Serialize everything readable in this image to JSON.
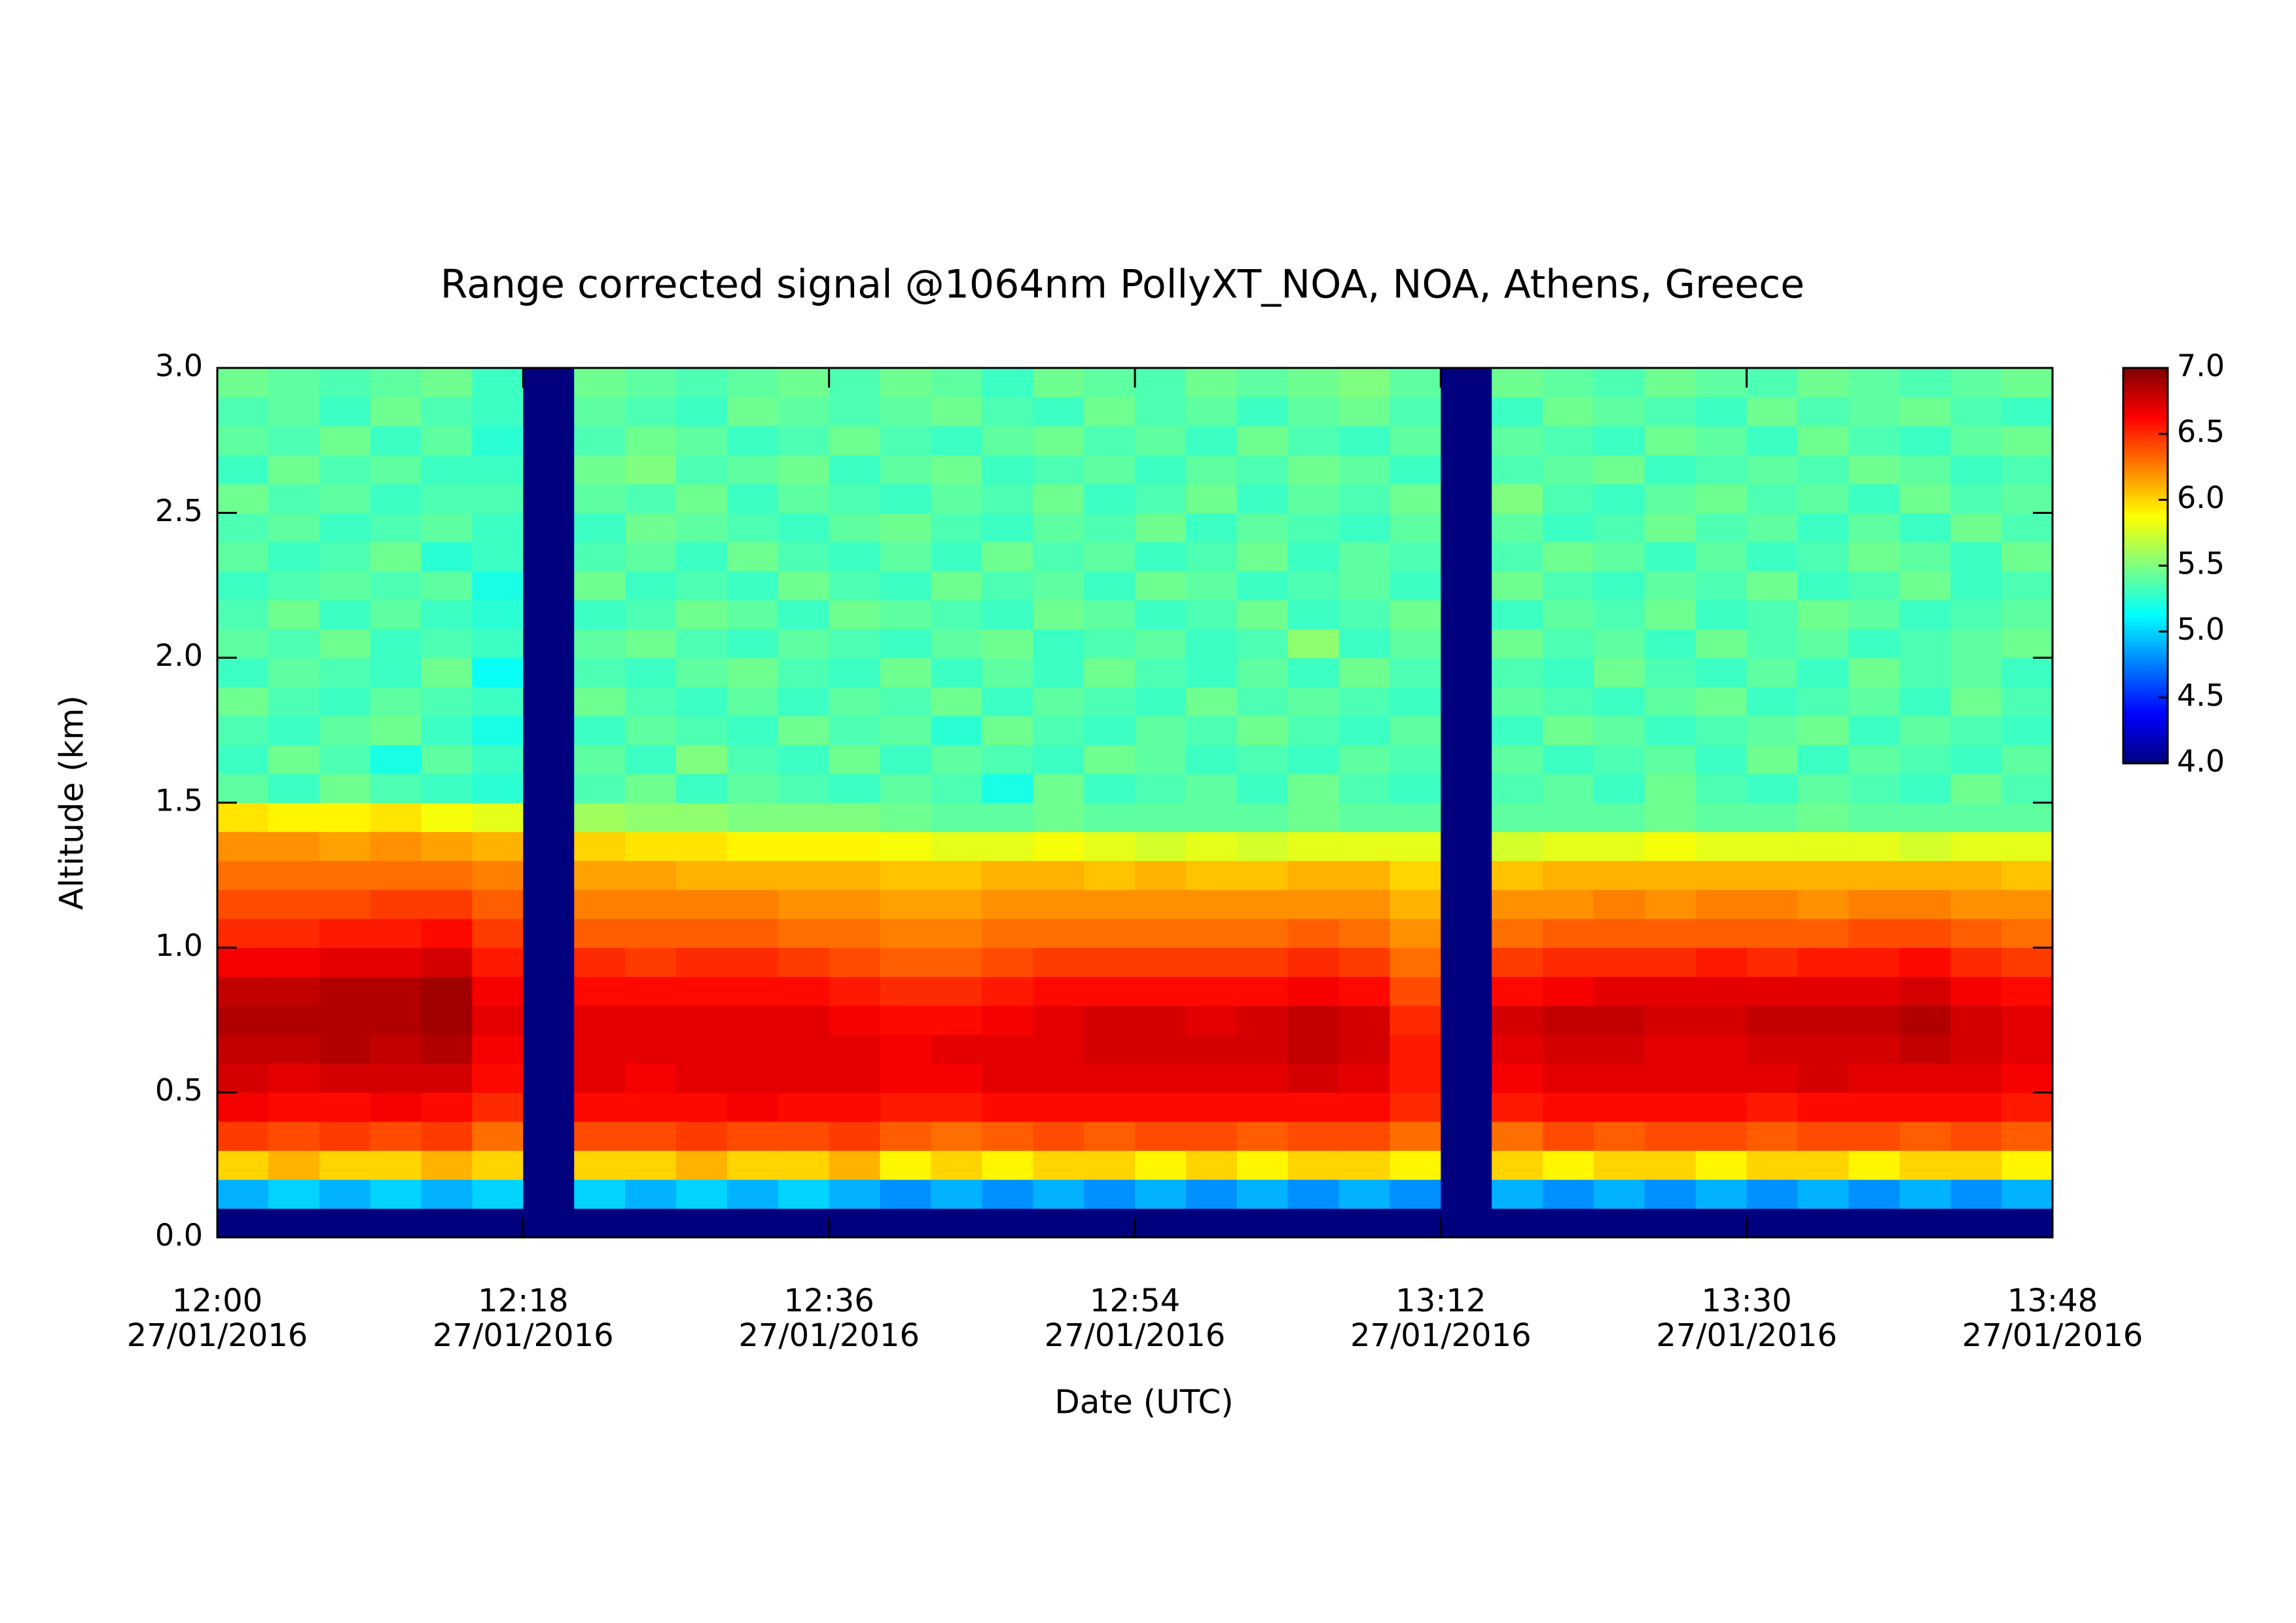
{
  "chart_data": {
    "type": "heatmap",
    "title": "Range corrected signal @1064nm  PollyXT_NOA, NOA, Athens, Greece",
    "xlabel": "Date (UTC)",
    "ylabel": "Altitude (km)",
    "x": [
      "12:00",
      "12:03",
      "12:06",
      "12:09",
      "12:12",
      "12:15",
      "12:18",
      "12:21",
      "12:24",
      "12:27",
      "12:30",
      "12:33",
      "12:36",
      "12:39",
      "12:42",
      "12:45",
      "12:48",
      "12:51",
      "12:54",
      "12:57",
      "13:00",
      "13:03",
      "13:06",
      "13:09",
      "13:12",
      "13:15",
      "13:18",
      "13:21",
      "13:24",
      "13:27",
      "13:30",
      "13:33",
      "13:36",
      "13:39",
      "13:42",
      "13:45"
    ],
    "xlim": [
      "12:00",
      "13:48"
    ],
    "xticks": [
      {
        "value": "12:00",
        "label": "12:00\n27/01/2016"
      },
      {
        "value": "12:18",
        "label": "12:18\n27/01/2016"
      },
      {
        "value": "12:36",
        "label": "12:36\n27/01/2016"
      },
      {
        "value": "12:54",
        "label": "12:54\n27/01/2016"
      },
      {
        "value": "13:12",
        "label": "13:12\n27/01/2016"
      },
      {
        "value": "13:30",
        "label": "13:30\n27/01/2016"
      },
      {
        "value": "13:48",
        "label": "13:48\n27/01/2016"
      }
    ],
    "y": [
      0,
      0.1,
      0.2,
      0.3,
      0.4,
      0.5,
      0.6,
      0.7,
      0.8,
      0.9,
      1,
      1.1,
      1.2,
      1.3,
      1.4,
      1.5,
      1.6,
      1.7,
      1.8,
      1.9,
      2,
      2.1,
      2.2,
      2.3,
      2.4,
      2.5,
      2.6,
      2.7,
      2.8,
      2.9
    ],
    "ylim": [
      0,
      3
    ],
    "yticks": [
      {
        "value": 0,
        "label": "0.0"
      },
      0.5,
      {
        "value": 1,
        "label": "1.0"
      },
      1.5,
      {
        "value": 2,
        "label": "2.0"
      },
      2.5,
      {
        "value": 3,
        "label": "3.0"
      }
    ],
    "zlim": [
      4,
      7
    ],
    "zticks": [
      {
        "value": 4,
        "label": "4.0"
      },
      4.5,
      {
        "value": 5,
        "label": "5.0"
      },
      5.5,
      {
        "value": 6,
        "label": "6.0"
      },
      6.5,
      {
        "value": 7,
        "label": "7.0"
      }
    ],
    "colormap": [
      "#00007f",
      "#0000ff",
      "#007fff",
      "#00ffff",
      "#7fff7f",
      "#ffff00",
      "#ff7f00",
      "#ff0000",
      "#7f0000"
    ],
    "z": [
      [
        4,
        4,
        4,
        4,
        4,
        4,
        4,
        4,
        4,
        4,
        4,
        4,
        4,
        4,
        4,
        4,
        4,
        4,
        4,
        4,
        4,
        4,
        4,
        4,
        4,
        4,
        4,
        4,
        4,
        4,
        4,
        4,
        4,
        4,
        4,
        4
      ],
      [
        4.9,
        5.0,
        4.9,
        5.0,
        4.9,
        5.0,
        4,
        5.0,
        4.9,
        5.0,
        4.9,
        5.0,
        4.9,
        4.8,
        4.9,
        4.8,
        4.9,
        4.8,
        4.9,
        4.8,
        4.9,
        4.8,
        4.9,
        4.8,
        4,
        4.9,
        4.8,
        4.9,
        4.8,
        4.9,
        4.8,
        4.9,
        4.8,
        4.9,
        4.8,
        4.9
      ],
      [
        6.0,
        6.1,
        6.0,
        6.0,
        6.1,
        6.0,
        4,
        6.0,
        6.0,
        6.1,
        6.0,
        6.0,
        6.1,
        5.9,
        6.0,
        5.9,
        6.0,
        6.0,
        5.9,
        6.0,
        5.9,
        6.0,
        6.0,
        5.9,
        4,
        6.0,
        5.9,
        6.0,
        6.0,
        5.9,
        6.0,
        6.0,
        5.9,
        6.0,
        6.0,
        5.9
      ],
      [
        6.45,
        6.4,
        6.45,
        6.4,
        6.45,
        6.3,
        4,
        6.4,
        6.4,
        6.45,
        6.4,
        6.4,
        6.45,
        6.35,
        6.3,
        6.35,
        6.4,
        6.35,
        6.4,
        6.4,
        6.35,
        6.4,
        6.4,
        6.3,
        4,
        6.3,
        6.4,
        6.35,
        6.4,
        6.4,
        6.35,
        6.4,
        6.4,
        6.35,
        6.4,
        6.35
      ],
      [
        6.65,
        6.6,
        6.6,
        6.65,
        6.6,
        6.5,
        4,
        6.6,
        6.6,
        6.6,
        6.65,
        6.6,
        6.6,
        6.55,
        6.55,
        6.6,
        6.6,
        6.6,
        6.6,
        6.6,
        6.6,
        6.6,
        6.6,
        6.5,
        4,
        6.55,
        6.6,
        6.6,
        6.6,
        6.6,
        6.55,
        6.6,
        6.6,
        6.6,
        6.6,
        6.55
      ],
      [
        6.75,
        6.7,
        6.75,
        6.75,
        6.75,
        6.6,
        4,
        6.7,
        6.65,
        6.7,
        6.7,
        6.7,
        6.7,
        6.65,
        6.65,
        6.7,
        6.7,
        6.7,
        6.7,
        6.7,
        6.7,
        6.75,
        6.7,
        6.55,
        4,
        6.65,
        6.7,
        6.7,
        6.7,
        6.7,
        6.7,
        6.75,
        6.7,
        6.7,
        6.7,
        6.65
      ],
      [
        6.8,
        6.8,
        6.85,
        6.8,
        6.85,
        6.65,
        4,
        6.7,
        6.7,
        6.7,
        6.7,
        6.7,
        6.7,
        6.65,
        6.7,
        6.7,
        6.7,
        6.75,
        6.75,
        6.75,
        6.75,
        6.8,
        6.75,
        6.55,
        4,
        6.7,
        6.75,
        6.75,
        6.7,
        6.7,
        6.75,
        6.75,
        6.75,
        6.8,
        6.75,
        6.7
      ],
      [
        6.85,
        6.85,
        6.85,
        6.85,
        6.9,
        6.7,
        4,
        6.7,
        6.7,
        6.7,
        6.7,
        6.7,
        6.65,
        6.6,
        6.6,
        6.65,
        6.7,
        6.75,
        6.75,
        6.7,
        6.75,
        6.8,
        6.75,
        6.5,
        4,
        6.75,
        6.8,
        6.8,
        6.75,
        6.75,
        6.8,
        6.8,
        6.8,
        6.85,
        6.75,
        6.7
      ],
      [
        6.8,
        6.8,
        6.85,
        6.85,
        6.9,
        6.65,
        4,
        6.6,
        6.6,
        6.6,
        6.6,
        6.6,
        6.55,
        6.5,
        6.5,
        6.55,
        6.6,
        6.6,
        6.6,
        6.6,
        6.6,
        6.65,
        6.6,
        6.4,
        4,
        6.6,
        6.65,
        6.7,
        6.7,
        6.7,
        6.7,
        6.7,
        6.7,
        6.75,
        6.65,
        6.6
      ],
      [
        6.65,
        6.65,
        6.7,
        6.7,
        6.75,
        6.55,
        4,
        6.5,
        6.45,
        6.5,
        6.5,
        6.45,
        6.4,
        6.35,
        6.35,
        6.4,
        6.45,
        6.45,
        6.45,
        6.45,
        6.45,
        6.5,
        6.45,
        6.3,
        4,
        6.45,
        6.5,
        6.5,
        6.5,
        6.55,
        6.5,
        6.55,
        6.55,
        6.6,
        6.5,
        6.45
      ],
      [
        6.5,
        6.5,
        6.55,
        6.55,
        6.6,
        6.45,
        4,
        6.35,
        6.35,
        6.35,
        6.35,
        6.3,
        6.3,
        6.25,
        6.25,
        6.3,
        6.3,
        6.3,
        6.3,
        6.3,
        6.3,
        6.35,
        6.3,
        6.2,
        4,
        6.3,
        6.35,
        6.35,
        6.35,
        6.35,
        6.35,
        6.35,
        6.4,
        6.4,
        6.35,
        6.3
      ],
      [
        6.4,
        6.4,
        6.4,
        6.45,
        6.45,
        6.35,
        4,
        6.25,
        6.25,
        6.25,
        6.25,
        6.2,
        6.2,
        6.15,
        6.15,
        6.2,
        6.2,
        6.2,
        6.2,
        6.2,
        6.2,
        6.2,
        6.2,
        6.1,
        4,
        6.2,
        6.2,
        6.25,
        6.2,
        6.25,
        6.25,
        6.2,
        6.25,
        6.25,
        6.2,
        6.2
      ],
      [
        6.3,
        6.3,
        6.3,
        6.3,
        6.3,
        6.25,
        4,
        6.15,
        6.15,
        6.1,
        6.1,
        6.1,
        6.1,
        6.05,
        6.05,
        6.1,
        6.1,
        6.05,
        6.1,
        6.05,
        6.05,
        6.1,
        6.1,
        6.0,
        4,
        6.05,
        6.1,
        6.1,
        6.1,
        6.1,
        6.1,
        6.1,
        6.1,
        6.1,
        6.1,
        6.05
      ],
      [
        6.2,
        6.2,
        6.15,
        6.2,
        6.15,
        6.1,
        4,
        6.0,
        5.95,
        5.95,
        5.9,
        5.9,
        5.9,
        5.85,
        5.8,
        5.8,
        5.85,
        5.8,
        5.75,
        5.8,
        5.75,
        5.8,
        5.8,
        5.8,
        4,
        5.75,
        5.8,
        5.8,
        5.85,
        5.8,
        5.8,
        5.8,
        5.8,
        5.75,
        5.8,
        5.8
      ],
      [
        5.95,
        5.9,
        5.9,
        5.95,
        5.85,
        5.8,
        4,
        5.6,
        5.55,
        5.55,
        5.5,
        5.5,
        5.5,
        5.45,
        5.4,
        5.4,
        5.45,
        5.4,
        5.4,
        5.4,
        5.4,
        5.45,
        5.4,
        5.4,
        4,
        5.4,
        5.4,
        5.4,
        5.45,
        5.4,
        5.4,
        5.45,
        5.4,
        5.4,
        5.4,
        5.4
      ],
      [
        5.4,
        5.3,
        5.45,
        5.35,
        5.3,
        5.25,
        4,
        5.35,
        5.45,
        5.3,
        5.4,
        5.35,
        5.3,
        5.4,
        5.35,
        5.2,
        5.45,
        5.3,
        5.35,
        5.4,
        5.3,
        5.45,
        5.35,
        5.3,
        4,
        5.35,
        5.4,
        5.3,
        5.45,
        5.35,
        5.3,
        5.4,
        5.35,
        5.3,
        5.45,
        5.35
      ],
      [
        5.3,
        5.45,
        5.35,
        5.2,
        5.4,
        5.3,
        4,
        5.4,
        5.3,
        5.5,
        5.35,
        5.3,
        5.45,
        5.3,
        5.4,
        5.35,
        5.3,
        5.45,
        5.4,
        5.3,
        5.35,
        5.3,
        5.4,
        5.35,
        4,
        5.4,
        5.3,
        5.35,
        5.4,
        5.3,
        5.45,
        5.3,
        5.4,
        5.35,
        5.3,
        5.4
      ],
      [
        5.35,
        5.3,
        5.4,
        5.45,
        5.3,
        5.2,
        4,
        5.3,
        5.4,
        5.35,
        5.3,
        5.45,
        5.35,
        5.4,
        5.25,
        5.45,
        5.35,
        5.3,
        5.4,
        5.35,
        5.45,
        5.35,
        5.3,
        5.4,
        4,
        5.3,
        5.45,
        5.4,
        5.3,
        5.35,
        5.4,
        5.45,
        5.3,
        5.4,
        5.35,
        5.3
      ],
      [
        5.45,
        5.35,
        5.3,
        5.4,
        5.35,
        5.3,
        4,
        5.45,
        5.35,
        5.3,
        5.4,
        5.3,
        5.4,
        5.35,
        5.45,
        5.3,
        5.4,
        5.35,
        5.3,
        5.45,
        5.35,
        5.4,
        5.35,
        5.3,
        4,
        5.4,
        5.35,
        5.3,
        5.4,
        5.45,
        5.3,
        5.35,
        5.4,
        5.3,
        5.45,
        5.35
      ],
      [
        5.3,
        5.4,
        5.35,
        5.3,
        5.45,
        5.15,
        4,
        5.35,
        5.3,
        5.4,
        5.45,
        5.35,
        5.3,
        5.45,
        5.3,
        5.4,
        5.3,
        5.45,
        5.35,
        5.3,
        5.4,
        5.3,
        5.45,
        5.35,
        4,
        5.35,
        5.3,
        5.45,
        5.35,
        5.3,
        5.4,
        5.3,
        5.45,
        5.35,
        5.4,
        5.3
      ],
      [
        5.4,
        5.35,
        5.45,
        5.3,
        5.35,
        5.3,
        4,
        5.4,
        5.45,
        5.35,
        5.3,
        5.4,
        5.35,
        5.3,
        5.4,
        5.45,
        5.3,
        5.35,
        5.4,
        5.3,
        5.35,
        5.55,
        5.3,
        5.4,
        4,
        5.45,
        5.35,
        5.4,
        5.3,
        5.45,
        5.35,
        5.4,
        5.3,
        5.35,
        5.4,
        5.45
      ],
      [
        5.35,
        5.45,
        5.3,
        5.4,
        5.3,
        5.25,
        4,
        5.3,
        5.35,
        5.45,
        5.4,
        5.3,
        5.45,
        5.4,
        5.35,
        5.3,
        5.45,
        5.4,
        5.3,
        5.35,
        5.45,
        5.3,
        5.35,
        5.45,
        4,
        5.3,
        5.4,
        5.35,
        5.45,
        5.3,
        5.35,
        5.45,
        5.4,
        5.3,
        5.35,
        5.4
      ],
      [
        5.3,
        5.35,
        5.4,
        5.35,
        5.4,
        5.2,
        4,
        5.45,
        5.3,
        5.35,
        5.3,
        5.45,
        5.35,
        5.3,
        5.45,
        5.35,
        5.4,
        5.3,
        5.45,
        5.4,
        5.3,
        5.35,
        5.4,
        5.3,
        4,
        5.45,
        5.35,
        5.3,
        5.4,
        5.35,
        5.45,
        5.3,
        5.35,
        5.45,
        5.3,
        5.35
      ],
      [
        5.4,
        5.3,
        5.35,
        5.45,
        5.25,
        5.3,
        4,
        5.35,
        5.4,
        5.3,
        5.45,
        5.35,
        5.3,
        5.4,
        5.3,
        5.45,
        5.35,
        5.4,
        5.3,
        5.35,
        5.45,
        5.3,
        5.4,
        5.35,
        4,
        5.35,
        5.45,
        5.4,
        5.3,
        5.4,
        5.3,
        5.35,
        5.45,
        5.4,
        5.3,
        5.45
      ],
      [
        5.35,
        5.4,
        5.3,
        5.35,
        5.4,
        5.3,
        4,
        5.3,
        5.45,
        5.4,
        5.35,
        5.3,
        5.4,
        5.45,
        5.35,
        5.3,
        5.4,
        5.35,
        5.45,
        5.3,
        5.4,
        5.35,
        5.3,
        5.4,
        4,
        5.4,
        5.3,
        5.35,
        5.45,
        5.35,
        5.4,
        5.3,
        5.4,
        5.3,
        5.45,
        5.35
      ],
      [
        5.45,
        5.35,
        5.4,
        5.3,
        5.35,
        5.35,
        4,
        5.4,
        5.35,
        5.45,
        5.3,
        5.4,
        5.35,
        5.3,
        5.4,
        5.35,
        5.45,
        5.3,
        5.35,
        5.45,
        5.3,
        5.4,
        5.35,
        5.45,
        4,
        5.5,
        5.35,
        5.3,
        5.4,
        5.45,
        5.35,
        5.4,
        5.3,
        5.45,
        5.35,
        5.4
      ],
      [
        5.3,
        5.45,
        5.35,
        5.4,
        5.3,
        5.3,
        4,
        5.45,
        5.5,
        5.35,
        5.4,
        5.45,
        5.3,
        5.4,
        5.45,
        5.3,
        5.35,
        5.4,
        5.3,
        5.4,
        5.35,
        5.45,
        5.4,
        5.3,
        4,
        5.35,
        5.4,
        5.45,
        5.3,
        5.35,
        5.4,
        5.35,
        5.45,
        5.4,
        5.3,
        5.35
      ],
      [
        5.4,
        5.35,
        5.45,
        5.3,
        5.4,
        5.25,
        4,
        5.35,
        5.45,
        5.4,
        5.3,
        5.35,
        5.45,
        5.35,
        5.3,
        5.4,
        5.45,
        5.35,
        5.4,
        5.3,
        5.45,
        5.35,
        5.3,
        5.4,
        4,
        5.4,
        5.35,
        5.3,
        5.45,
        5.4,
        5.3,
        5.45,
        5.35,
        5.3,
        5.4,
        5.45
      ],
      [
        5.35,
        5.4,
        5.3,
        5.45,
        5.35,
        5.3,
        4,
        5.4,
        5.35,
        5.3,
        5.45,
        5.4,
        5.35,
        5.4,
        5.45,
        5.35,
        5.3,
        5.45,
        5.35,
        5.4,
        5.3,
        5.4,
        5.45,
        5.35,
        4,
        5.3,
        5.45,
        5.4,
        5.35,
        5.3,
        5.45,
        5.35,
        5.4,
        5.45,
        5.35,
        5.3
      ],
      [
        5.45,
        5.4,
        5.35,
        5.4,
        5.45,
        5.3,
        4,
        5.45,
        5.4,
        5.35,
        5.4,
        5.45,
        5.35,
        5.45,
        5.4,
        5.3,
        5.45,
        5.4,
        5.35,
        5.45,
        5.4,
        5.45,
        5.5,
        5.4,
        4,
        5.45,
        5.4,
        5.35,
        5.45,
        5.4,
        5.35,
        5.45,
        5.4,
        5.35,
        5.4,
        5.45
      ]
    ]
  }
}
